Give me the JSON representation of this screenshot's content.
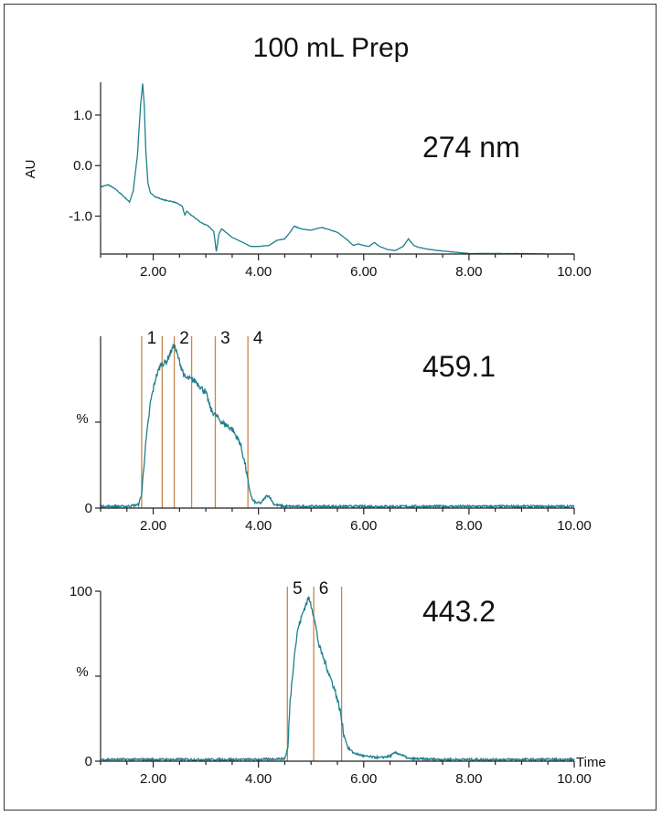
{
  "title": "100 mL Prep",
  "colors": {
    "trace": "#1f7f8f",
    "fraction_line": "#c8864a",
    "axis": "#222222"
  },
  "chart_data": [
    {
      "type": "line",
      "panel_label": "274 nm",
      "ylabel": "AU",
      "xlim": [
        1.0,
        10.0
      ],
      "ylim": [
        -1.75,
        1.65
      ],
      "yticks": [
        1.0,
        0.0,
        -1.0
      ],
      "ytick_labels": [
        "1.0",
        "0.0",
        "-1.0"
      ],
      "xticks": [
        2.0,
        4.0,
        6.0,
        8.0,
        10.0
      ],
      "xtick_labels": [
        "2.00",
        "4.00",
        "6.00",
        "8.00",
        "10.00"
      ],
      "xlabel": "",
      "noise": 0.015,
      "series": [
        {
          "x": [
            1.0,
            1.15,
            1.3,
            1.45,
            1.55,
            1.62,
            1.7,
            1.76,
            1.8,
            1.83,
            1.86,
            1.9,
            1.95,
            2.05,
            2.2,
            2.4,
            2.55,
            2.6,
            2.64,
            2.68,
            2.75,
            2.9,
            3.05,
            3.15,
            3.2,
            3.25,
            3.3,
            3.5,
            3.7,
            3.85,
            4.0,
            4.2,
            4.35,
            4.5,
            4.6,
            4.68,
            4.8,
            5.0,
            5.2,
            5.5,
            5.7,
            5.8,
            5.9,
            6.0,
            6.1,
            6.2,
            6.3,
            6.45,
            6.6,
            6.75,
            6.85,
            6.95,
            7.05,
            7.2,
            7.4,
            7.6,
            7.8,
            8.0,
            8.5,
            9.0,
            9.5,
            10.0
          ],
          "y": [
            -0.42,
            -0.38,
            -0.48,
            -0.62,
            -0.72,
            -0.5,
            0.2,
            1.2,
            1.62,
            1.2,
            0.3,
            -0.35,
            -0.55,
            -0.62,
            -0.68,
            -0.72,
            -0.8,
            -0.98,
            -0.9,
            -0.95,
            -1.0,
            -1.12,
            -1.2,
            -1.3,
            -1.7,
            -1.35,
            -1.25,
            -1.42,
            -1.52,
            -1.6,
            -1.6,
            -1.58,
            -1.48,
            -1.45,
            -1.32,
            -1.2,
            -1.25,
            -1.28,
            -1.22,
            -1.32,
            -1.48,
            -1.58,
            -1.55,
            -1.58,
            -1.6,
            -1.52,
            -1.6,
            -1.66,
            -1.68,
            -1.6,
            -1.45,
            -1.58,
            -1.62,
            -1.65,
            -1.68,
            -1.7,
            -1.72,
            -1.74,
            -1.74,
            -1.74,
            -1.75,
            -1.75
          ]
        }
      ]
    },
    {
      "type": "line",
      "panel_label": "459.1",
      "ylabel": "%",
      "xlim": [
        1.0,
        10.0
      ],
      "ylim": [
        0,
        100
      ],
      "yticks": [
        50,
        0
      ],
      "ytick_labels": [
        "",
        "0"
      ],
      "xticks": [
        2.0,
        4.0,
        6.0,
        8.0,
        10.0
      ],
      "xtick_labels": [
        "2.00",
        "4.00",
        "6.00",
        "8.00",
        "10.00"
      ],
      "xlabel": "",
      "noise": 3.5,
      "fractions": [
        {
          "label": "1",
          "x": 1.78
        },
        {
          "label": "",
          "x": 2.17
        },
        {
          "label": "2",
          "x": 2.4
        },
        {
          "label": "",
          "x": 2.73
        },
        {
          "label": "3",
          "x": 3.18
        },
        {
          "label": "4",
          "x": 3.8
        }
      ],
      "series": [
        {
          "x": [
            1.0,
            1.5,
            1.72,
            1.78,
            1.85,
            1.95,
            2.05,
            2.15,
            2.25,
            2.35,
            2.4,
            2.45,
            2.6,
            2.8,
            3.0,
            3.1,
            3.3,
            3.5,
            3.65,
            3.75,
            3.82,
            3.88,
            3.95,
            4.05,
            4.15,
            4.2,
            4.3,
            4.5,
            5.0,
            6.0,
            7.0,
            8.0,
            9.0,
            10.0
          ],
          "y": [
            1,
            1,
            2,
            8,
            35,
            62,
            76,
            84,
            85,
            92,
            95,
            90,
            76,
            74,
            67,
            57,
            50,
            46,
            38,
            25,
            12,
            5,
            3,
            3,
            7,
            7,
            2,
            1,
            1,
            1,
            1,
            1,
            1,
            1
          ]
        }
      ]
    },
    {
      "type": "line",
      "panel_label": "443.2",
      "ylabel": "%",
      "xlim": [
        1.0,
        10.0
      ],
      "ylim": [
        0,
        100
      ],
      "yticks": [
        100,
        50,
        0
      ],
      "ytick_labels": [
        "100",
        "",
        "0"
      ],
      "xticks": [
        2.0,
        4.0,
        6.0,
        8.0,
        10.0
      ],
      "xtick_labels": [
        "2.00",
        "4.00",
        "6.00",
        "8.00",
        "10.00"
      ],
      "xlabel": "Time",
      "noise": 3.5,
      "fractions": [
        {
          "label": "5",
          "x": 4.55
        },
        {
          "label": "6",
          "x": 5.05
        },
        {
          "label": "",
          "x": 5.58
        }
      ],
      "series": [
        {
          "x": [
            1.0,
            2.0,
            3.0,
            4.0,
            4.5,
            4.56,
            4.6,
            4.68,
            4.75,
            4.85,
            4.95,
            5.0,
            5.05,
            5.15,
            5.3,
            5.45,
            5.55,
            5.62,
            5.7,
            5.8,
            6.0,
            6.3,
            6.5,
            6.6,
            6.7,
            6.85,
            7.5,
            8.5,
            10.0
          ],
          "y": [
            1,
            1,
            1,
            1,
            1.5,
            8,
            35,
            62,
            78,
            88,
            96,
            92,
            86,
            68,
            55,
            42,
            30,
            16,
            8,
            5,
            3,
            2,
            3,
            5,
            4,
            1.5,
            1,
            1,
            1
          ]
        }
      ]
    }
  ]
}
